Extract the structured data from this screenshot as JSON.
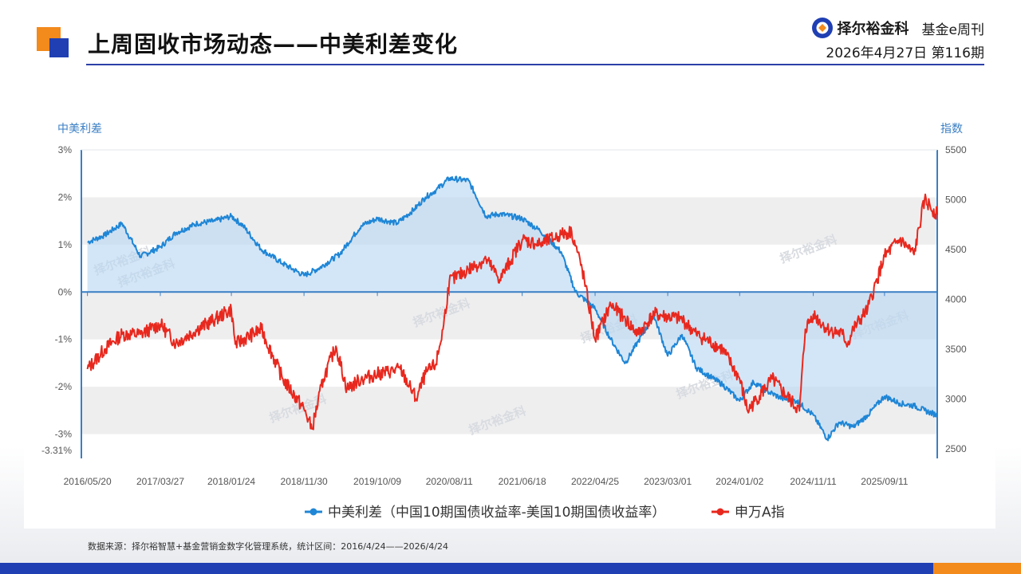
{
  "header": {
    "title": "上周固收市场动态——中美利差变化",
    "brand_name": "择尔裕金科",
    "publication": "基金e周刊",
    "date_issue": "2026年4月27日  第116期"
  },
  "colors": {
    "spread_series": "#1f86d6",
    "index_series": "#e8281e",
    "axis": "#3a7fc4",
    "accent_orange": "#f28a1c",
    "accent_blue": "#1f3fb3"
  },
  "watermark": {
    "text": "择尔裕金科"
  },
  "chart_data": {
    "type": "line",
    "left_axis_title": "中美利差",
    "right_axis_title": "指数",
    "left_ticks": [
      "3%",
      "2%",
      "1%",
      "0%",
      "-1%",
      "-2%",
      "-3%",
      "-3.31%"
    ],
    "right_ticks": [
      "5500",
      "5000",
      "4500",
      "4000",
      "3500",
      "3000",
      "2500"
    ],
    "y_left_range": [
      -3.31,
      3
    ],
    "y_right_range": [
      2500,
      5500
    ],
    "x_labels": [
      "2016/05/20",
      "2017/03/27",
      "2018/01/24",
      "2018/11/30",
      "2019/10/09",
      "2020/08/11",
      "2021/06/18",
      "2022/04/25",
      "2023/03/01",
      "2024/01/02",
      "2024/11/11",
      "2025/09/11"
    ],
    "x_range": [
      "2016/04/24",
      "2026/04/24"
    ],
    "legend_position": "bottom",
    "series": [
      {
        "name": "中美利差（中国10期国债收益率-美国10期国债收益率）",
        "axis": "left",
        "x": [
          "2016/05/20",
          "2016/08/01",
          "2016/10/15",
          "2017/01/01",
          "2017/03/27",
          "2017/06/01",
          "2017/09/01",
          "2017/11/15",
          "2018/01/24",
          "2018/03/15",
          "2018/06/01",
          "2018/09/01",
          "2018/11/30",
          "2019/02/01",
          "2019/05/01",
          "2019/08/01",
          "2019/10/09",
          "2020/01/01",
          "2020/03/15",
          "2020/05/01",
          "2020/06/15",
          "2020/08/11",
          "2020/11/01",
          "2021/01/15",
          "2021/03/15",
          "2021/06/18",
          "2021/09/01",
          "2021/12/01",
          "2022/02/01",
          "2022/04/25",
          "2022/07/01",
          "2022/09/01",
          "2022/10/25",
          "2023/01/01",
          "2023/03/01",
          "2023/05/01",
          "2023/07/01",
          "2023/10/20",
          "2024/01/02",
          "2024/03/01",
          "2024/05/01",
          "2024/07/01",
          "2024/09/01",
          "2024/11/11",
          "2025/01/10",
          "2025/03/01",
          "2025/05/01",
          "2025/07/01",
          "2025/09/11",
          "2025/11/15",
          "2026/01/15",
          "2026/03/01",
          "2026/04/24"
        ],
        "values": [
          1.05,
          1.2,
          1.45,
          0.75,
          0.95,
          1.25,
          1.45,
          1.5,
          1.6,
          1.4,
          0.9,
          0.6,
          0.35,
          0.5,
          0.8,
          1.4,
          1.55,
          1.45,
          1.75,
          2.0,
          2.15,
          2.4,
          2.35,
          1.6,
          1.65,
          1.55,
          1.3,
          0.85,
          0.0,
          -0.35,
          -1.0,
          -1.5,
          -1.05,
          -0.5,
          -1.35,
          -0.9,
          -1.6,
          -1.95,
          -2.3,
          -1.9,
          -2.1,
          -2.25,
          -2.3,
          -2.6,
          -3.1,
          -2.75,
          -2.85,
          -2.6,
          -2.2,
          -2.35,
          -2.4,
          -2.5,
          -2.6
        ]
      },
      {
        "name": "申万A指",
        "axis": "right",
        "x": [
          "2016/05/20",
          "2016/08/01",
          "2016/10/15",
          "2017/01/01",
          "2017/03/27",
          "2017/06/01",
          "2017/09/01",
          "2017/11/15",
          "2018/01/24",
          "2018/02/10",
          "2018/06/01",
          "2018/09/01",
          "2018/11/30",
          "2019/01/03",
          "2019/02/20",
          "2019/04/15",
          "2019/06/01",
          "2019/08/01",
          "2019/10/09",
          "2020/01/15",
          "2020/03/23",
          "2020/05/01",
          "2020/06/15",
          "2020/07/15",
          "2020/08/11",
          "2020/11/01",
          "2021/01/15",
          "2021/03/15",
          "2021/06/18",
          "2021/09/01",
          "2021/12/01",
          "2022/01/15",
          "2022/03/01",
          "2022/04/25",
          "2022/07/01",
          "2022/09/01",
          "2022/10/25",
          "2023/01/01",
          "2023/05/01",
          "2023/07/01",
          "2023/10/20",
          "2024/01/02",
          "2024/02/05",
          "2024/05/20",
          "2024/09/13",
          "2024/10/08",
          "2024/11/11",
          "2025/01/10",
          "2025/03/15",
          "2025/04/07",
          "2025/05/01",
          "2025/07/01",
          "2025/09/11",
          "2025/11/15",
          "2026/01/15",
          "2026/03/01",
          "2026/04/24"
        ],
        "values": [
          3300,
          3500,
          3650,
          3650,
          3750,
          3560,
          3700,
          3800,
          3900,
          3550,
          3700,
          3200,
          2900,
          2700,
          3200,
          3530,
          3100,
          3200,
          3250,
          3300,
          3000,
          3250,
          3350,
          3700,
          4180,
          4300,
          4400,
          4200,
          4600,
          4550,
          4650,
          4680,
          4300,
          3600,
          3950,
          3800,
          3650,
          3850,
          3800,
          3650,
          3500,
          3200,
          2880,
          3200,
          2880,
          3700,
          3850,
          3700,
          3650,
          3550,
          3700,
          3900,
          4430,
          4600,
          4450,
          5000,
          4850
        ]
      }
    ]
  },
  "footnote": "数据来源：择尔裕智慧+基金营销金数字化管理系统，统计区间：2016/4/24——2026/4/24"
}
